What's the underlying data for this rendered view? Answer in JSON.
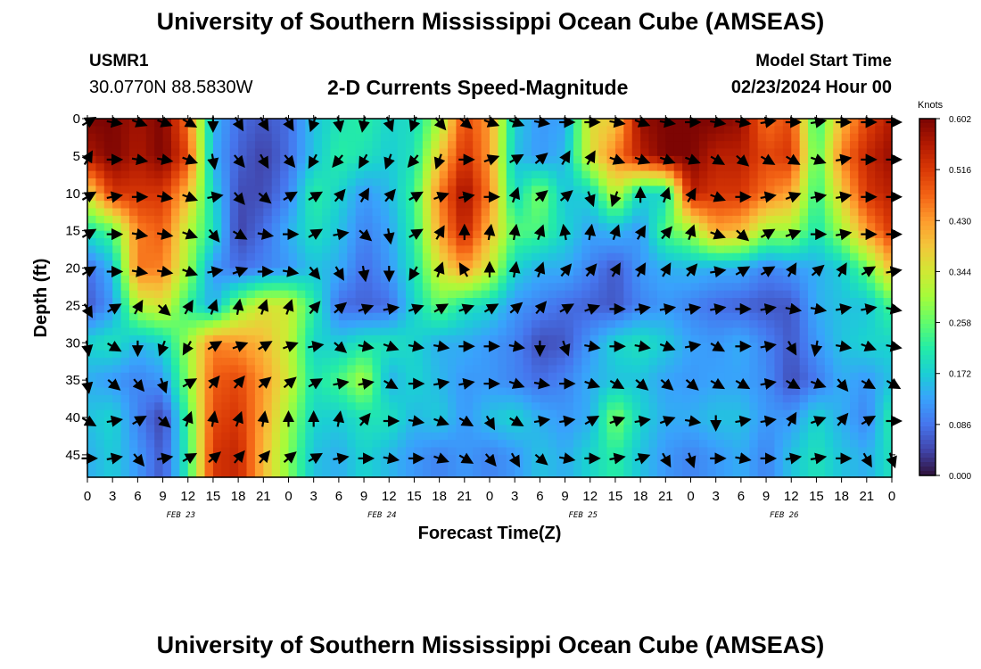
{
  "header": {
    "title": "University of Southern Mississippi Ocean Cube (AMSEAS)",
    "station_id": "USMR1",
    "coords": "30.0770N  88.5830W",
    "subtitle": "2-D Currents Speed-Magnitude",
    "start_label": "Model Start Time",
    "start_value": "02/23/2024 Hour 00"
  },
  "footer": {
    "title": "University of Southern Mississippi Ocean Cube (AMSEAS)"
  },
  "chart_data": {
    "type": "heatmap",
    "title": "2-D Currents Speed-Magnitude",
    "xlabel": "Forecast Time(Z)",
    "ylabel": "Depth (ft)",
    "x_range_hours": [
      0,
      96
    ],
    "x_tick_labels": [
      "0",
      "3",
      "6",
      "9",
      "12",
      "15",
      "18",
      "21",
      "0",
      "3",
      "6",
      "9",
      "12",
      "15",
      "18",
      "21",
      "0",
      "3",
      "6",
      "9",
      "12",
      "15",
      "18",
      "21",
      "0",
      "3",
      "6",
      "9",
      "12",
      "15",
      "18",
      "21",
      "0"
    ],
    "date_labels": [
      {
        "hour": 12,
        "label": "FEB 23"
      },
      {
        "hour": 36,
        "label": "FEB 24"
      },
      {
        "hour": 60,
        "label": "FEB 25"
      },
      {
        "hour": 84,
        "label": "FEB 26"
      }
    ],
    "y_range_ft": [
      0,
      48
    ],
    "y_ticks": [
      0,
      5,
      10,
      15,
      20,
      25,
      30,
      35,
      40,
      45
    ],
    "colorbar": {
      "title": "Knots",
      "ticks": [
        "0.000",
        "0.086",
        "0.172",
        "0.258",
        "0.344",
        "0.430",
        "0.516",
        "0.602"
      ],
      "min": 0.0,
      "max": 0.602,
      "colors": [
        "#30123b",
        "#4145ab",
        "#4675ed",
        "#39a2fc",
        "#1bcfd4",
        "#24eca6",
        "#61fc6c",
        "#a4fc3b",
        "#d1e834",
        "#f3c63a",
        "#fe9b2d",
        "#f36315",
        "#d93806",
        "#b11901",
        "#7a0403"
      ]
    },
    "arrow_depths_ft": [
      0,
      5,
      10,
      15,
      20,
      25,
      30,
      35,
      40,
      45
    ],
    "arrow_hour_step": 3,
    "speed_field_knots": {
      "hours": [
        0,
        3,
        6,
        9,
        12,
        15,
        18,
        21,
        24,
        27,
        30,
        33,
        36,
        39,
        42,
        45,
        48,
        51,
        54,
        57,
        60,
        63,
        66,
        69,
        72,
        75,
        78,
        81,
        84,
        87,
        90,
        93,
        96
      ],
      "depths_ft": [
        0,
        5,
        10,
        15,
        20,
        25,
        30,
        35,
        40,
        45
      ],
      "values": [
        [
          0.6,
          0.6,
          0.57,
          0.6,
          0.46,
          0.15,
          0.08,
          0.06,
          0.08,
          0.16,
          0.2,
          0.22,
          0.18,
          0.19,
          0.3,
          0.5,
          0.43,
          0.17,
          0.12,
          0.13,
          0.36,
          0.38,
          0.58,
          0.6,
          0.6,
          0.6,
          0.58,
          0.46,
          0.5,
          0.22,
          0.4,
          0.5,
          0.56
        ],
        [
          0.56,
          0.6,
          0.56,
          0.6,
          0.5,
          0.14,
          0.07,
          0.04,
          0.08,
          0.16,
          0.22,
          0.2,
          0.17,
          0.2,
          0.38,
          0.53,
          0.43,
          0.16,
          0.12,
          0.15,
          0.35,
          0.45,
          0.55,
          0.6,
          0.6,
          0.55,
          0.55,
          0.5,
          0.52,
          0.24,
          0.45,
          0.54,
          0.58
        ],
        [
          0.36,
          0.52,
          0.52,
          0.52,
          0.4,
          0.18,
          0.05,
          0.05,
          0.1,
          0.22,
          0.18,
          0.12,
          0.15,
          0.23,
          0.45,
          0.58,
          0.45,
          0.18,
          0.28,
          0.16,
          0.18,
          0.33,
          0.18,
          0.18,
          0.55,
          0.52,
          0.52,
          0.46,
          0.42,
          0.22,
          0.38,
          0.52,
          0.55
        ],
        [
          0.2,
          0.25,
          0.45,
          0.48,
          0.32,
          0.2,
          0.04,
          0.08,
          0.14,
          0.2,
          0.16,
          0.1,
          0.13,
          0.22,
          0.42,
          0.55,
          0.4,
          0.25,
          0.24,
          0.18,
          0.13,
          0.15,
          0.12,
          0.25,
          0.3,
          0.42,
          0.4,
          0.3,
          0.3,
          0.2,
          0.3,
          0.43,
          0.52
        ],
        [
          0.08,
          0.15,
          0.46,
          0.45,
          0.3,
          0.12,
          0.08,
          0.1,
          0.12,
          0.16,
          0.14,
          0.08,
          0.12,
          0.2,
          0.35,
          0.43,
          0.34,
          0.18,
          0.14,
          0.14,
          0.1,
          0.06,
          0.12,
          0.14,
          0.15,
          0.14,
          0.14,
          0.1,
          0.12,
          0.14,
          0.17,
          0.26,
          0.4
        ],
        [
          0.06,
          0.12,
          0.32,
          0.35,
          0.22,
          0.14,
          0.28,
          0.35,
          0.34,
          0.22,
          0.08,
          0.07,
          0.08,
          0.18,
          0.26,
          0.2,
          0.18,
          0.12,
          0.1,
          0.08,
          0.07,
          0.06,
          0.1,
          0.12,
          0.1,
          0.08,
          0.07,
          0.06,
          0.06,
          0.14,
          0.16,
          0.16,
          0.24
        ],
        [
          0.18,
          0.2,
          0.15,
          0.18,
          0.3,
          0.45,
          0.43,
          0.4,
          0.33,
          0.18,
          0.17,
          0.2,
          0.2,
          0.18,
          0.14,
          0.14,
          0.12,
          0.1,
          0.05,
          0.06,
          0.12,
          0.18,
          0.2,
          0.17,
          0.13,
          0.12,
          0.14,
          0.1,
          0.06,
          0.12,
          0.16,
          0.18,
          0.18
        ],
        [
          0.14,
          0.12,
          0.1,
          0.12,
          0.28,
          0.48,
          0.5,
          0.43,
          0.34,
          0.2,
          0.24,
          0.31,
          0.14,
          0.18,
          0.15,
          0.12,
          0.12,
          0.1,
          0.08,
          0.1,
          0.14,
          0.16,
          0.16,
          0.13,
          0.12,
          0.13,
          0.13,
          0.11,
          0.05,
          0.09,
          0.14,
          0.12,
          0.16
        ],
        [
          0.16,
          0.18,
          0.1,
          0.04,
          0.24,
          0.5,
          0.52,
          0.42,
          0.3,
          0.18,
          0.17,
          0.2,
          0.2,
          0.15,
          0.17,
          0.12,
          0.16,
          0.18,
          0.14,
          0.12,
          0.14,
          0.28,
          0.18,
          0.14,
          0.14,
          0.16,
          0.16,
          0.12,
          0.12,
          0.18,
          0.14,
          0.1,
          0.22
        ],
        [
          0.14,
          0.17,
          0.12,
          0.06,
          0.22,
          0.52,
          0.54,
          0.4,
          0.28,
          0.16,
          0.14,
          0.18,
          0.15,
          0.12,
          0.1,
          0.12,
          0.1,
          0.12,
          0.16,
          0.14,
          0.18,
          0.22,
          0.16,
          0.12,
          0.1,
          0.12,
          0.14,
          0.1,
          0.16,
          0.2,
          0.16,
          0.14,
          0.2
        ]
      ]
    },
    "direction_field_deg": {
      "note": "direction arrows point toward, degrees clockwise from north (up), one row per arrow depth, one value per 3-h step",
      "values": [
        [
          60,
          100,
          110,
          110,
          120,
          180,
          150,
          150,
          150,
          200,
          170,
          190,
          160,
          200,
          140,
          130,
          110,
          110,
          100,
          90,
          90,
          100,
          110,
          100,
          90,
          100,
          100,
          80,
          90,
          80,
          90,
          90,
          90
        ],
        [
          30,
          90,
          100,
          100,
          110,
          170,
          140,
          150,
          140,
          210,
          220,
          210,
          200,
          220,
          200,
          90,
          70,
          60,
          50,
          30,
          30,
          110,
          110,
          110,
          110,
          120,
          130,
          120,
          120,
          110,
          80,
          90,
          90
        ],
        [
          60,
          80,
          90,
          100,
          110,
          80,
          140,
          130,
          60,
          60,
          40,
          30,
          40,
          60,
          70,
          80,
          90,
          20,
          50,
          50,
          160,
          200,
          0,
          20,
          30,
          110,
          90,
          80,
          70,
          80,
          80,
          90,
          90
        ],
        [
          60,
          90,
          100,
          100,
          110,
          140,
          120,
          100,
          90,
          60,
          80,
          130,
          170,
          60,
          30,
          0,
          10,
          10,
          20,
          350,
          10,
          20,
          30,
          40,
          20,
          110,
          130,
          60,
          70,
          90,
          80,
          90,
          90
        ],
        [
          60,
          90,
          100,
          100,
          110,
          80,
          70,
          90,
          100,
          140,
          150,
          170,
          180,
          210,
          20,
          330,
          0,
          10,
          20,
          40,
          40,
          30,
          30,
          30,
          40,
          80,
          60,
          60,
          30,
          50,
          30,
          60,
          80
        ],
        [
          150,
          60,
          30,
          130,
          30,
          20,
          10,
          20,
          20,
          40,
          50,
          70,
          80,
          70,
          60,
          70,
          60,
          50,
          40,
          60,
          70,
          90,
          80,
          80,
          80,
          80,
          90,
          80,
          100,
          100,
          80,
          80,
          100
        ],
        [
          170,
          120,
          180,
          200,
          210,
          60,
          70,
          60,
          70,
          80,
          130,
          100,
          110,
          100,
          100,
          90,
          90,
          100,
          180,
          160,
          100,
          90,
          100,
          110,
          80,
          120,
          90,
          80,
          150,
          190,
          100,
          110,
          100
        ],
        [
          170,
          130,
          140,
          160,
          60,
          40,
          40,
          50,
          50,
          60,
          80,
          80,
          120,
          90,
          80,
          80,
          90,
          110,
          100,
          90,
          110,
          120,
          130,
          130,
          130,
          120,
          120,
          80,
          120,
          110,
          140,
          120,
          120
        ],
        [
          120,
          80,
          60,
          130,
          20,
          10,
          20,
          10,
          0,
          0,
          10,
          40,
          90,
          100,
          110,
          120,
          150,
          120,
          80,
          80,
          60,
          70,
          80,
          70,
          100,
          180,
          80,
          80,
          30,
          70,
          40,
          60,
          90
        ],
        [
          90,
          80,
          140,
          80,
          60,
          50,
          40,
          40,
          50,
          60,
          80,
          90,
          100,
          90,
          110,
          120,
          140,
          150,
          130,
          100,
          90,
          80,
          70,
          150,
          160,
          90,
          100,
          90,
          80,
          80,
          90,
          150,
          160
        ]
      ]
    }
  }
}
